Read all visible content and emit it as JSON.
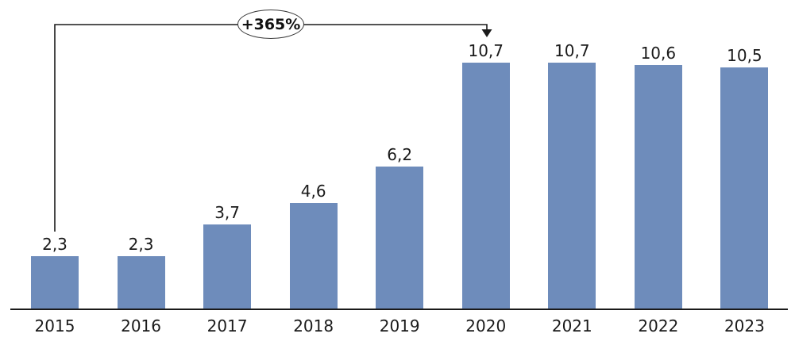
{
  "chart_data": {
    "type": "bar",
    "title": "",
    "xlabel": "",
    "ylabel": "",
    "categories": [
      "2015",
      "2016",
      "2017",
      "2018",
      "2019",
      "2020",
      "2021",
      "2022",
      "2023"
    ],
    "values": [
      2.3,
      2.3,
      3.7,
      4.6,
      6.2,
      10.7,
      10.7,
      10.6,
      10.5
    ],
    "value_labels": [
      "2,3",
      "2,3",
      "3,7",
      "4,6",
      "6,2",
      "10,7",
      "10,7",
      "10,6",
      "10,5"
    ],
    "ylim": [
      0,
      12.4
    ],
    "grid": false,
    "legend": "none",
    "bar_color": "#6E8CBB",
    "axis_color": "#1a1a1a",
    "text_color": "#1a1a1a",
    "annotation": {
      "label": "+365%",
      "from_category": "2015",
      "to_category": "2020"
    }
  }
}
